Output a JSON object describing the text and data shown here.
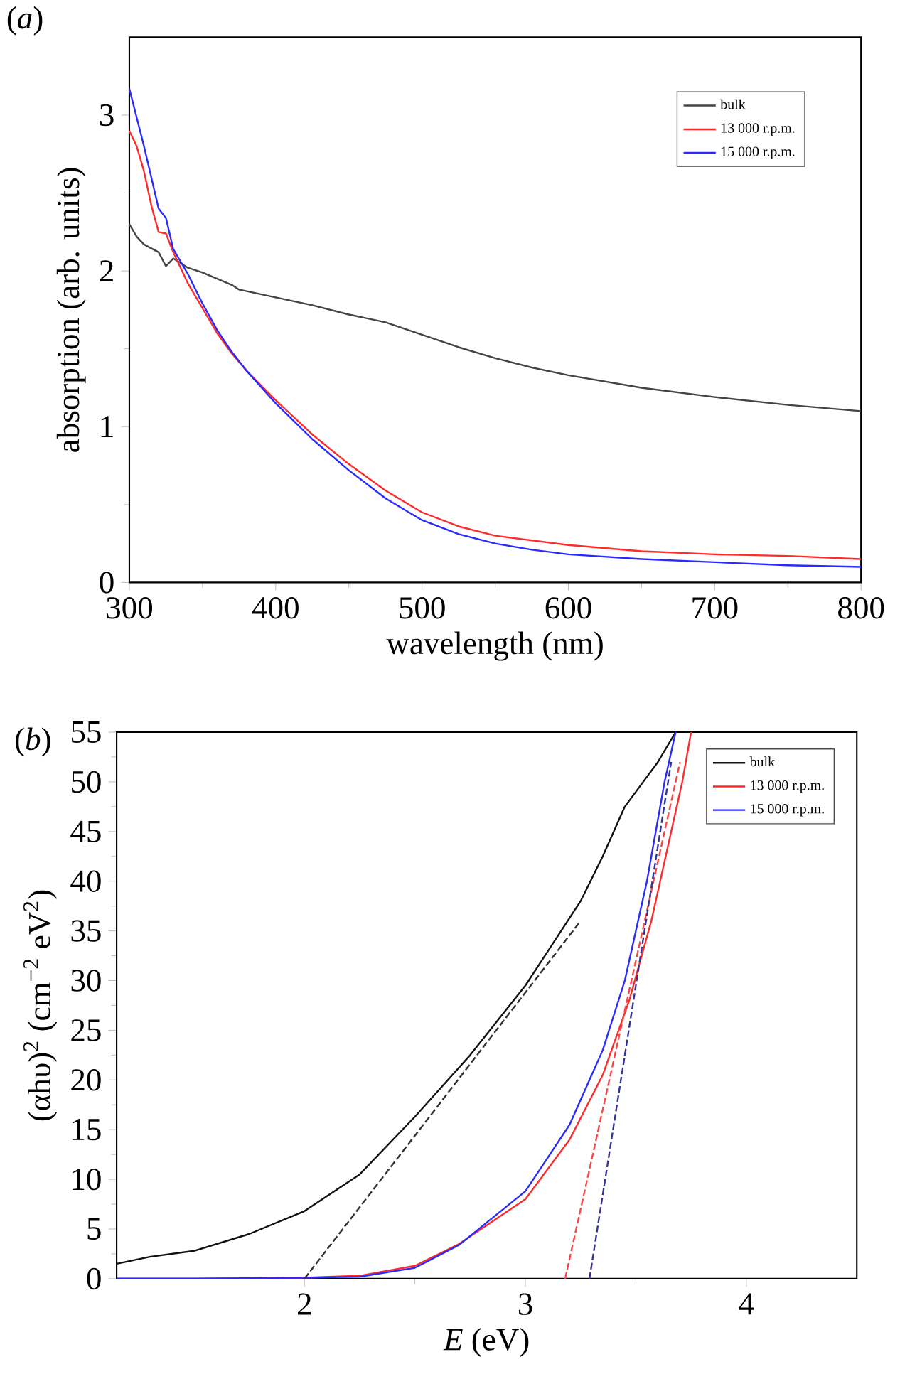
{
  "chart_data": [
    {
      "type": "line",
      "title": "(*a*)",
      "xlabel": "wavelength (nm)",
      "ylabel": "absorption (arb. units)",
      "xlim": [
        300,
        800
      ],
      "ylim": [
        0,
        3.5
      ],
      "xticks": [
        300,
        400,
        500,
        600,
        700,
        800
      ],
      "yticks": [
        0,
        1,
        2,
        3
      ],
      "legend": "top right",
      "line_style": "solid",
      "series": [
        {
          "name": "bulk",
          "color": "#444444",
          "x": [
            300,
            305,
            310,
            320,
            325,
            330,
            340,
            350,
            360,
            370,
            375,
            400,
            425,
            450,
            475,
            500,
            525,
            550,
            575,
            600,
            650,
            700,
            750,
            800
          ],
          "values": [
            2.3,
            2.22,
            2.17,
            2.12,
            2.03,
            2.08,
            2.02,
            1.99,
            1.95,
            1.91,
            1.88,
            1.83,
            1.78,
            1.72,
            1.67,
            1.59,
            1.51,
            1.44,
            1.38,
            1.33,
            1.25,
            1.19,
            1.14,
            1.1
          ]
        },
        {
          "name": "13 000 r.p.m.",
          "color": "#ff2a2a",
          "x": [
            300,
            305,
            310,
            315,
            320,
            325,
            330,
            340,
            350,
            360,
            370,
            380,
            400,
            425,
            450,
            475,
            500,
            525,
            550,
            575,
            600,
            650,
            700,
            750,
            800
          ],
          "values": [
            2.9,
            2.8,
            2.64,
            2.42,
            2.25,
            2.24,
            2.12,
            1.92,
            1.76,
            1.6,
            1.47,
            1.36,
            1.17,
            0.95,
            0.76,
            0.59,
            0.45,
            0.36,
            0.3,
            0.27,
            0.24,
            0.2,
            0.18,
            0.17,
            0.15
          ]
        },
        {
          "name": "15 000 r.p.m.",
          "color": "#2a2aff",
          "x": [
            300,
            310,
            320,
            325,
            330,
            340,
            350,
            360,
            370,
            380,
            400,
            425,
            450,
            475,
            500,
            525,
            550,
            575,
            600,
            650,
            700,
            750,
            800
          ],
          "values": [
            3.17,
            2.8,
            2.4,
            2.34,
            2.14,
            1.98,
            1.79,
            1.62,
            1.48,
            1.36,
            1.15,
            0.92,
            0.72,
            0.54,
            0.4,
            0.31,
            0.25,
            0.21,
            0.18,
            0.15,
            0.13,
            0.11,
            0.1
          ]
        }
      ]
    },
    {
      "type": "line",
      "title": "(*b*)",
      "xlabel": "*E* (eV)",
      "ylabel": "(αhυ)$^{2}$ (cm$^{−2}$ eV$^{2}$)",
      "xlim": [
        1.15,
        4.5
      ],
      "ylim": [
        0,
        55
      ],
      "xticks": [
        2,
        3,
        4
      ],
      "yticks": [
        0,
        5,
        10,
        15,
        20,
        25,
        30,
        35,
        40,
        45,
        50,
        55
      ],
      "legend": "top right",
      "line_style": "solid",
      "series": [
        {
          "name": "bulk",
          "color": "#111111",
          "x": [
            1.15,
            1.3,
            1.5,
            1.75,
            2.0,
            2.25,
            2.5,
            2.75,
            3.0,
            3.25,
            3.35,
            3.45,
            3.55,
            3.6,
            3.68
          ],
          "values": [
            1.5,
            2.2,
            2.8,
            4.5,
            6.8,
            10.5,
            16.3,
            22.5,
            29.5,
            38,
            42.5,
            47.5,
            50.5,
            52,
            55
          ]
        },
        {
          "name": "13 000 r.p.m.",
          "color": "#ff2a2a",
          "x": [
            1.15,
            1.5,
            2.0,
            2.25,
            2.5,
            2.7,
            3.0,
            3.2,
            3.35,
            3.47,
            3.57,
            3.66,
            3.71,
            3.75
          ],
          "values": [
            0,
            0,
            0.1,
            0.3,
            1.3,
            3.5,
            8,
            14,
            20.5,
            28,
            36,
            45,
            50,
            55
          ]
        },
        {
          "name": "15 000 r.p.m.",
          "color": "#2a2aff",
          "x": [
            1.15,
            1.5,
            2.0,
            2.25,
            2.5,
            2.7,
            3.0,
            3.2,
            3.35,
            3.45,
            3.55,
            3.63,
            3.68
          ],
          "values": [
            0,
            0,
            0.1,
            0.2,
            1.1,
            3.4,
            8.8,
            15.5,
            23,
            30,
            40,
            50,
            55
          ]
        },
        {
          "color": "#333333",
          "line_style": "dashed",
          "x": [
            2.0,
            3.25
          ],
          "values": [
            0,
            36
          ]
        },
        {
          "color": "#ff4444",
          "line_style": "dashed",
          "x": [
            3.18,
            3.7
          ],
          "values": [
            0,
            52
          ]
        },
        {
          "color": "#333399",
          "line_style": "dashed",
          "x": [
            3.29,
            3.66
          ],
          "values": [
            0,
            52
          ]
        }
      ]
    }
  ]
}
